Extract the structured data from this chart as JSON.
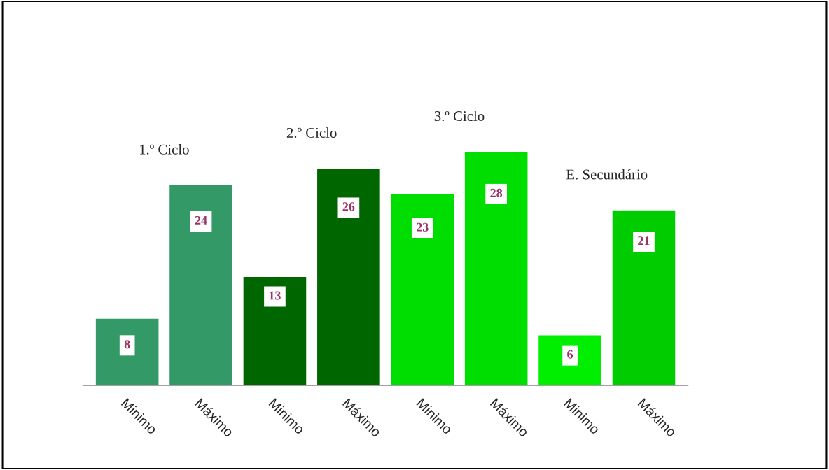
{
  "chart_data": {
    "type": "bar",
    "categories": [
      "Minimo",
      "Máximo",
      "Minimo",
      "Máximo",
      "Minimo",
      "Máximo",
      "Minimo",
      "Máximo"
    ],
    "values": [
      8,
      24,
      13,
      26,
      23,
      28,
      6,
      21
    ],
    "colors": [
      "#339966",
      "#339966",
      "#006600",
      "#006600",
      "#00dd00",
      "#00dd00",
      "#00ee00",
      "#00cc00"
    ],
    "data_labels": true,
    "annotations": [
      "1.º Ciclo",
      "2.º Ciclo",
      "3.º Ciclo",
      "E. Secundário"
    ]
  }
}
